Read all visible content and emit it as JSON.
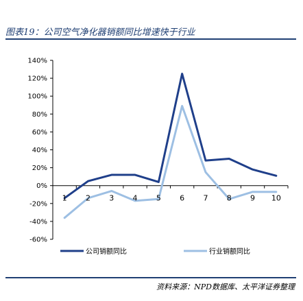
{
  "title": "图表19：公司空气净化器销额同比增速快于行业",
  "source": "资料来源：NPD数据库、太平洋证券整理",
  "chart_data": {
    "type": "line",
    "x": [
      "1",
      "2",
      "3",
      "4",
      "5",
      "6",
      "7",
      "8",
      "9",
      "10"
    ],
    "ylim": [
      -60,
      140
    ],
    "yticks": [
      -60,
      -40,
      -20,
      0,
      20,
      40,
      60,
      80,
      100,
      120,
      140
    ],
    "ytick_labels": [
      "-60%",
      "-40%",
      "-20%",
      "0%",
      "20%",
      "40%",
      "60%",
      "80%",
      "100%",
      "120%",
      "140%"
    ],
    "grid": false,
    "legend_position": "bottom",
    "series": [
      {
        "name": "公司销额同比",
        "color": "#1f3f8a",
        "values": [
          -14,
          5,
          12,
          12,
          4,
          125,
          28,
          30,
          18,
          11
        ]
      },
      {
        "name": "行业销额同比",
        "color": "#9dbfe3",
        "values": [
          -36,
          -14,
          -6,
          -17,
          -15,
          89,
          15,
          -15,
          -7,
          -7
        ]
      }
    ]
  }
}
